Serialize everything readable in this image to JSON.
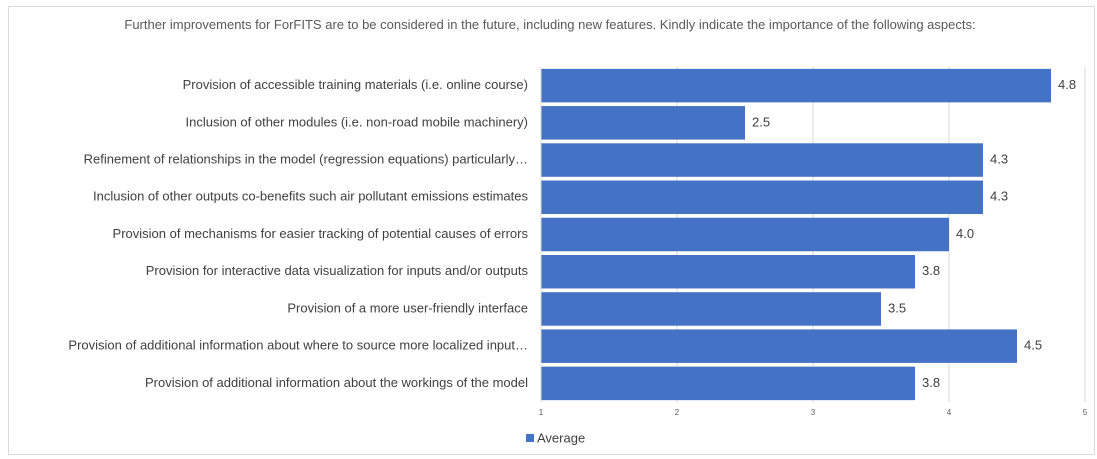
{
  "chart_data": {
    "type": "bar",
    "orientation": "horizontal",
    "title": "Further improvements for ForFITS are to be considered in the future, including new features. Kindly indicate the importance of the following aspects:",
    "categories": [
      "Provision of accessible training materials (i.e. online course)",
      "Inclusion of other modules (i.e. non-road mobile machinery)",
      "Refinement of relationships in the model (regression equations) particularly…",
      "Inclusion of other outputs co-benefits such air pollutant emissions estimates",
      "Provision of mechanisms for easier tracking of potential causes of errors",
      "Provision for interactive data visualization for inputs and/or outputs",
      "Provision of a more user-friendly interface",
      "Provision of additional information about where to source more localized input…",
      "Provision of additional information about the workings of the model"
    ],
    "series": [
      {
        "name": "Average",
        "color": "#4472c4",
        "values": [
          4.75,
          2.5,
          4.25,
          4.25,
          4.0,
          3.75,
          3.5,
          4.5,
          3.75
        ],
        "value_labels": [
          "4.8",
          "2.5",
          "4.3",
          "4.3",
          "4.0",
          "3.8",
          "3.5",
          "4.5",
          "3.8"
        ]
      }
    ],
    "xlim": [
      1,
      5
    ],
    "xticks": [
      1,
      2,
      3,
      4,
      5
    ],
    "grid": true,
    "legend": "bottom"
  }
}
